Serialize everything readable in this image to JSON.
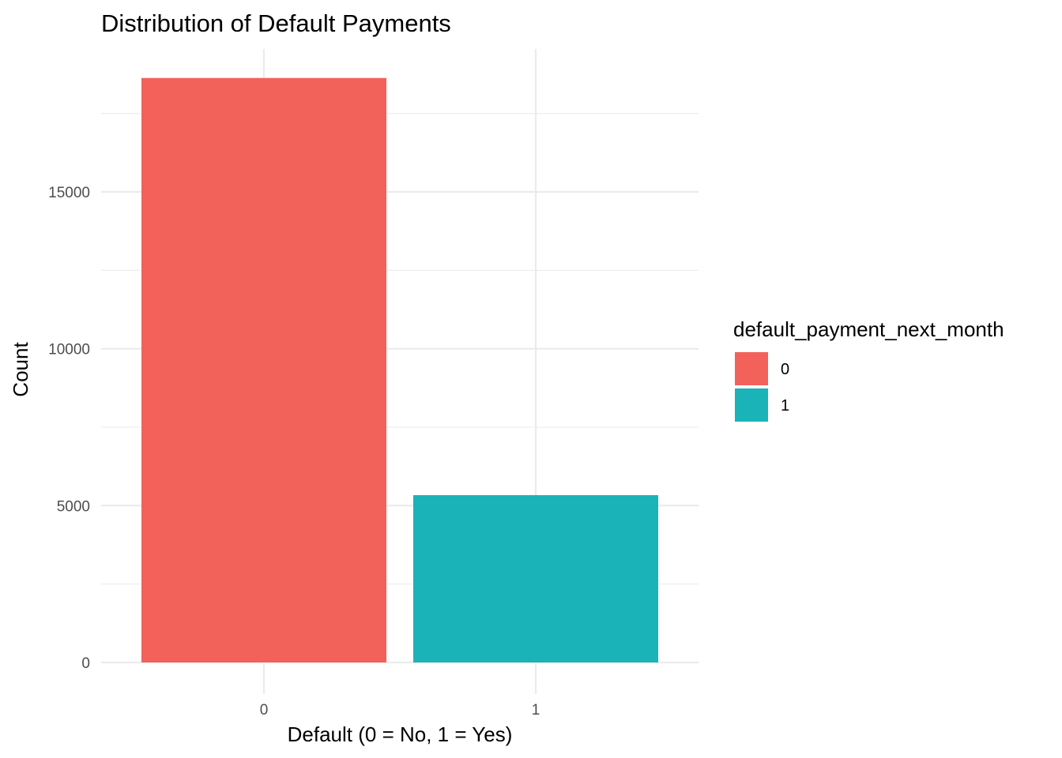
{
  "chart_data": {
    "type": "bar",
    "title": "Distribution of Default Payments",
    "xlabel": "Default (0 = No, 1 = Yes)",
    "ylabel": "Count",
    "categories": [
      "0",
      "1"
    ],
    "values": [
      18630,
      5333
    ],
    "colors": [
      "#F8766D",
      "#00BFC4"
    ],
    "bar_colors_rendered": [
      "#f3615b",
      "#1ab3b8"
    ],
    "ylim": [
      0,
      19500
    ],
    "yticks": [
      0,
      5000,
      10000,
      15000
    ],
    "yticks_labels": [
      "0",
      "5000",
      "10000",
      "15000"
    ],
    "y_minor_ticks": [
      2500,
      7500,
      12500,
      17500
    ],
    "grid": true,
    "legend": {
      "title": "default_payment_next_month",
      "placement": "right",
      "entries": [
        {
          "label": "0",
          "color": "#f3615b"
        },
        {
          "label": "1",
          "color": "#1ab3b8"
        }
      ]
    }
  }
}
